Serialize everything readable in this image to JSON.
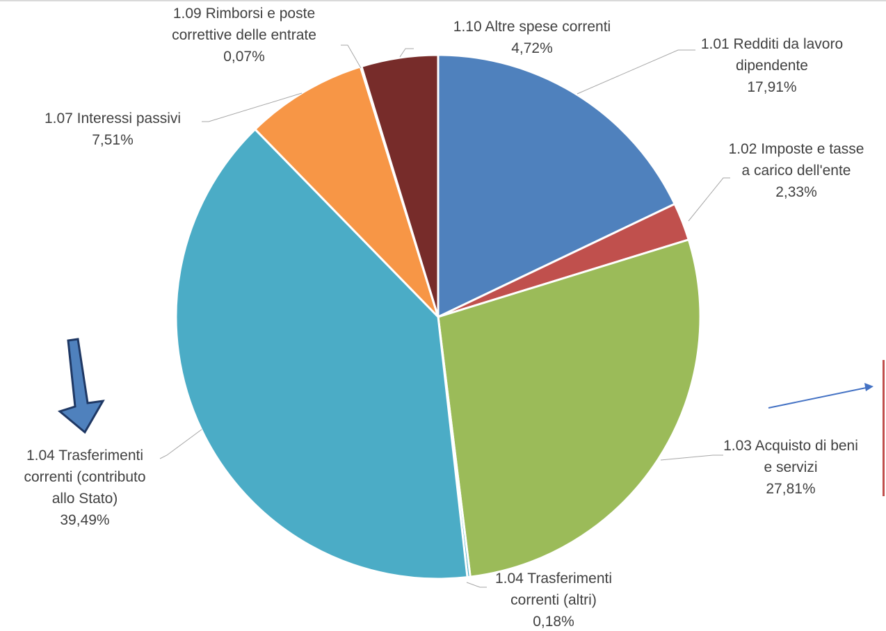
{
  "chart_data": {
    "type": "pie",
    "series": [
      {
        "values": [
          17.91,
          2.33,
          27.81,
          0.18,
          39.49,
          7.51,
          0.07,
          4.72
        ],
        "labels": [
          [
            "1.01 Redditi da lavoro",
            "dipendente",
            "17,91%"
          ],
          [
            "1.02 Imposte e tasse",
            "a carico dell'ente",
            "2,33%"
          ],
          [
            "1.03 Acquisto di beni",
            "e servizi",
            "27,81%"
          ],
          [
            "1.04 Trasferimenti",
            "correnti (altri)",
            "0,18%"
          ],
          [
            "1.04 Trasferimenti",
            "correnti (contributo",
            "allo Stato)",
            "39,49%"
          ],
          [
            "1.07 Interessi passivi",
            "7,51%"
          ],
          [
            "1.09 Rimborsi e poste",
            "correttive delle entrate",
            "0,07%"
          ],
          [
            "1.10 Altre spese correnti",
            "4,72%"
          ]
        ],
        "colors": [
          "#4f81bd",
          "#c0504d",
          "#9bbb59",
          "#4bacc6",
          "#4bacc6",
          "#f79646",
          "#c0504d",
          "#772c2a"
        ]
      }
    ],
    "start": "12 o'clock",
    "direction": "clockwise",
    "legend": "none",
    "data_labels": "outside with leader lines"
  },
  "decorations": {
    "left_arrow": {
      "color": "#4f81bd",
      "outline": "#1f3864"
    },
    "right_arrow": {
      "color": "#4472c4"
    },
    "right_edge_bar": {
      "color": "#c0504d"
    }
  }
}
